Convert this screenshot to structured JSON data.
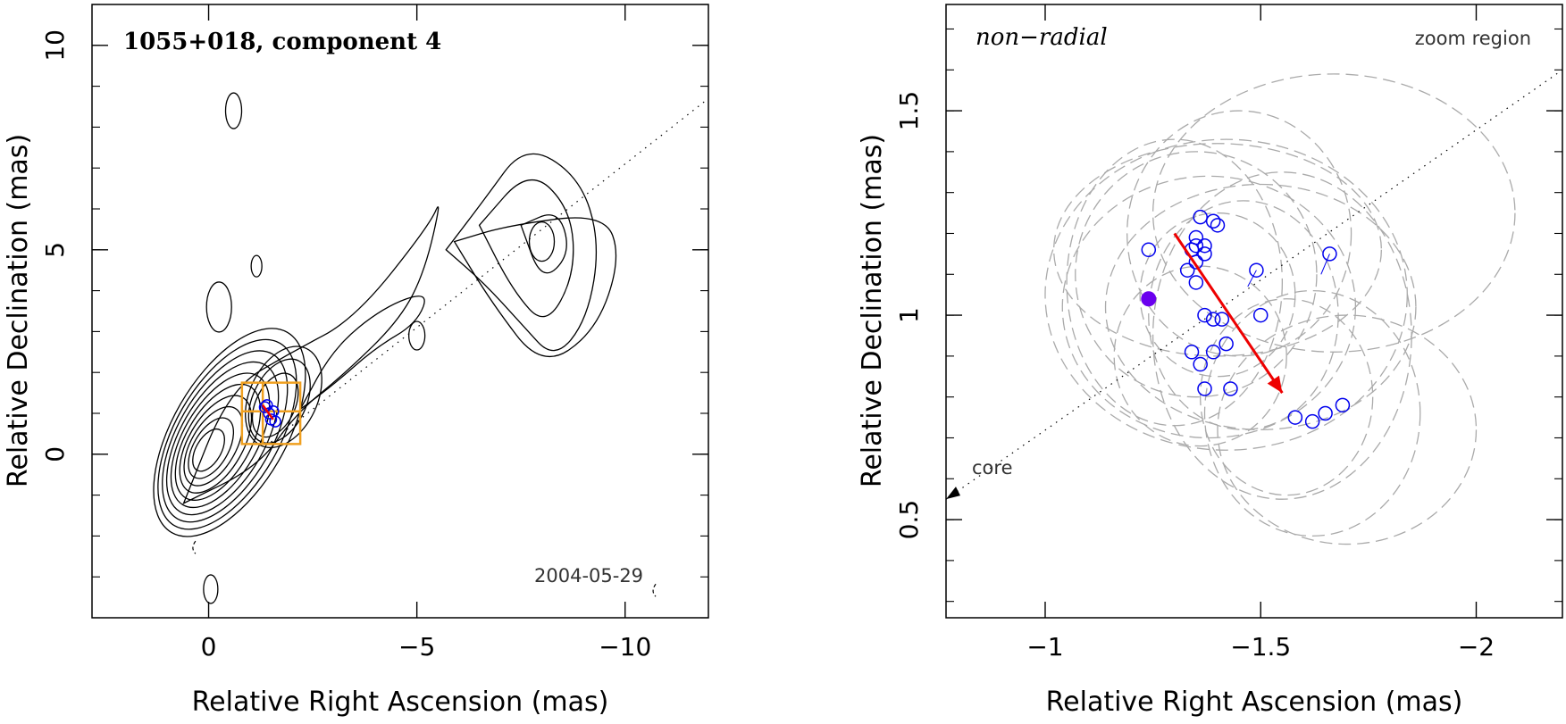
{
  "colors": {
    "axis": "#000000",
    "component": "#0000ee",
    "arrow": "#ee0000",
    "box": "#f0a020",
    "ellipse": "#aaaaaa",
    "filled": "#6a00ee"
  },
  "chart_data": [
    {
      "type": "contour",
      "title": "1055+018, component 4",
      "date": "2004-05-29",
      "xlabel": "Relative Right Ascension (mas)",
      "ylabel": "Relative Declination (mas)",
      "xlim": [
        2.8,
        -12.0
      ],
      "ylim": [
        -4.0,
        11.0
      ],
      "xticks": [
        {
          "v": 0,
          "label": "0"
        },
        {
          "v": -5,
          "label": "−5"
        },
        {
          "v": -10,
          "label": "−10"
        }
      ],
      "yticks": [
        {
          "v": 0,
          "label": "0"
        },
        {
          "v": 5,
          "label": "5"
        },
        {
          "v": 10,
          "label": "10"
        }
      ],
      "direction_line": [
        [
          -1.5,
          0.3
        ],
        [
          -12,
          8.7
        ]
      ],
      "zoom_box": [
        [
          -0.8,
          0.25
        ],
        [
          -2.2,
          1.75
        ]
      ],
      "zoom_box_cross": [
        -1.3,
        1.05
      ],
      "component_positions": [
        [
          -1.35,
          1.15
        ],
        [
          -1.45,
          1.0
        ],
        [
          -1.5,
          0.85
        ],
        [
          -1.6,
          0.8
        ],
        [
          -1.4,
          1.2
        ],
        [
          -1.55,
          1.05
        ]
      ],
      "arrow": [
        [
          -1.3,
          1.2
        ],
        [
          -1.55,
          0.85
        ]
      ],
      "contour_center_core": [
        0.0,
        0.1
      ],
      "blobs": [
        [
          -8.0,
          5.2
        ],
        [
          -0.6,
          8.4
        ],
        [
          -0.25,
          3.6
        ],
        [
          -1.15,
          4.6
        ],
        [
          -5.0,
          2.9
        ],
        [
          -0.05,
          -3.3
        ]
      ]
    },
    {
      "type": "scatter",
      "title": "non−radial",
      "corner_label": "zoom region",
      "core_label": "core",
      "xlabel": "Relative Right Ascension (mas)",
      "ylabel": "Relative Declination (mas)",
      "xlim": [
        -0.77,
        -2.2
      ],
      "ylim": [
        0.26,
        1.76
      ],
      "xticks": [
        {
          "v": -1,
          "label": "−1"
        },
        {
          "v": -1.5,
          "label": "−1.5"
        },
        {
          "v": -2,
          "label": "−2"
        }
      ],
      "yticks": [
        {
          "v": 0.5,
          "label": "0.5"
        },
        {
          "v": 1,
          "label": "1"
        },
        {
          "v": 1.5,
          "label": "1.5"
        }
      ],
      "direction_line": [
        [
          -0.77,
          0.55
        ],
        [
          -2.2,
          1.6
        ]
      ],
      "core_arrow_tip": [
        -0.77,
        0.55
      ],
      "points": [
        [
          -1.24,
          1.16
        ],
        [
          -1.36,
          1.24
        ],
        [
          -1.39,
          1.23
        ],
        [
          -1.4,
          1.22
        ],
        [
          -1.35,
          1.19
        ],
        [
          -1.35,
          1.17
        ],
        [
          -1.37,
          1.17
        ],
        [
          -1.34,
          1.16
        ],
        [
          -1.37,
          1.15
        ],
        [
          -1.35,
          1.13
        ],
        [
          -1.33,
          1.11
        ],
        [
          -1.35,
          1.08
        ],
        [
          -1.49,
          1.11
        ],
        [
          -1.37,
          1.0
        ],
        [
          -1.39,
          0.99
        ],
        [
          -1.41,
          0.99
        ],
        [
          -1.5,
          1.0
        ],
        [
          -1.42,
          0.93
        ],
        [
          -1.34,
          0.91
        ],
        [
          -1.39,
          0.91
        ],
        [
          -1.36,
          0.88
        ],
        [
          -1.37,
          0.82
        ],
        [
          -1.43,
          0.82
        ],
        [
          -1.66,
          1.15
        ],
        [
          -1.58,
          0.75
        ],
        [
          -1.62,
          0.74
        ],
        [
          -1.65,
          0.76
        ],
        [
          -1.69,
          0.78
        ]
      ],
      "filled_point": [
        -1.24,
        1.04
      ],
      "arrow": [
        [
          -1.3,
          1.2
        ],
        [
          -1.55,
          0.81
        ]
      ],
      "ellipses": [
        [
          -1.38,
          1.02,
          0.34,
          0.32
        ],
        [
          -1.42,
          1.05,
          0.42,
          0.38
        ],
        [
          -1.35,
          1.1,
          0.28,
          0.3
        ],
        [
          -1.46,
          1.0,
          0.22,
          0.28
        ],
        [
          -1.4,
          1.05,
          0.18,
          0.2
        ],
        [
          -1.5,
          1.02,
          0.36,
          0.3
        ],
        [
          -1.3,
          1.08,
          0.25,
          0.35
        ],
        [
          -1.55,
          0.95,
          0.3,
          0.4
        ],
        [
          -1.4,
          1.16,
          0.38,
          0.26
        ],
        [
          -1.45,
          1.2,
          0.26,
          0.3
        ],
        [
          -1.67,
          1.25,
          0.42,
          0.34
        ],
        [
          -1.62,
          0.76,
          0.25,
          0.3
        ],
        [
          -1.7,
          0.72,
          0.3,
          0.28
        ],
        [
          -1.56,
          0.8,
          0.2,
          0.24
        ],
        [
          -1.36,
          0.9,
          0.2,
          0.22
        ]
      ]
    }
  ]
}
